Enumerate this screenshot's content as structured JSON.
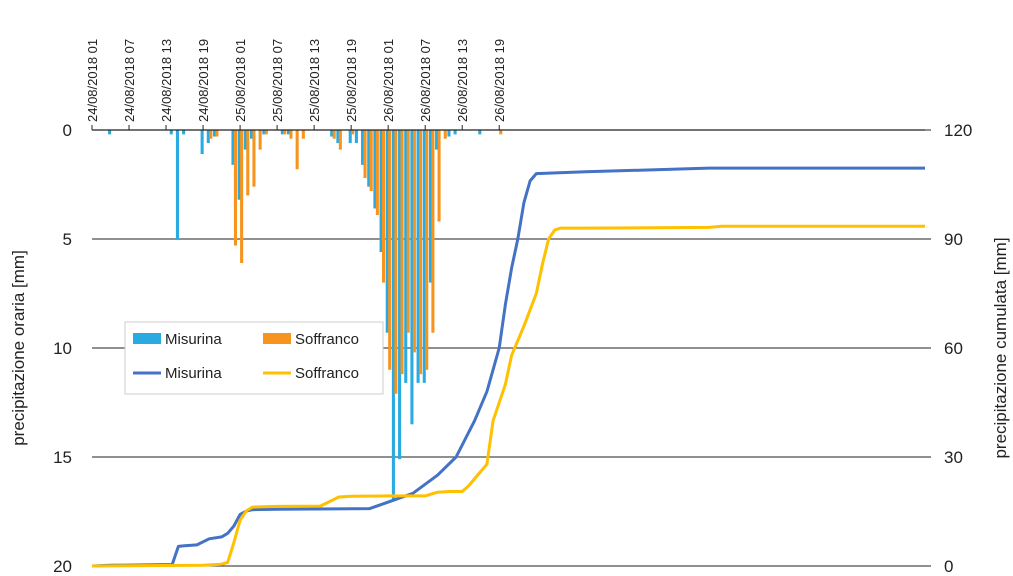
{
  "chart_data": {
    "type": "bar+line",
    "title": "",
    "x_ticks": [
      "24/08/2018 01",
      "24/08/2018 07",
      "24/08/2018 13",
      "24/08/2018 19",
      "25/08/2018 01",
      "25/08/2018 07",
      "25/08/2018 13",
      "25/08/2018 19",
      "26/08/2018 01",
      "26/08/2018 07",
      "26/08/2018 13",
      "26/08/2018 19"
    ],
    "x_range": [
      "24/08/2018 01",
      "26/08/2018 23"
    ],
    "y_left": {
      "label": "precipitazione oraria [mm]",
      "range": [
        0,
        20
      ],
      "inverted": true,
      "ticks": [
        "0",
        "5",
        "10",
        "15",
        "20"
      ]
    },
    "y_right": {
      "label": "precipitazione cumulata [mm]",
      "range": [
        0,
        120
      ],
      "ticks": [
        "0",
        "30",
        "60",
        "90",
        "120"
      ]
    },
    "grid": "horizontal",
    "legend": {
      "placement": "left-middle",
      "entries": [
        {
          "label": "Misurina",
          "kind": "bar",
          "color": "#29ABE2"
        },
        {
          "label": "Soffranco",
          "kind": "bar",
          "color": "#F7941D"
        },
        {
          "label": "Misurina",
          "kind": "line",
          "color": "#4472C4"
        },
        {
          "label": "Soffranco",
          "kind": "line",
          "color": "#FFC000"
        }
      ]
    },
    "bars": {
      "Misurina": [
        [
          3,
          0.2
        ],
        [
          13,
          0.2
        ],
        [
          14,
          5.0
        ],
        [
          15,
          0.2
        ],
        [
          18,
          1.1
        ],
        [
          19,
          0.6
        ],
        [
          20,
          0.3
        ],
        [
          23,
          1.6
        ],
        [
          24,
          3.2
        ],
        [
          25,
          0.9
        ],
        [
          26,
          0.4
        ],
        [
          28,
          0.2
        ],
        [
          31,
          0.2
        ],
        [
          32,
          0.2
        ],
        [
          39,
          0.3
        ],
        [
          40,
          0.6
        ],
        [
          42,
          0.6
        ],
        [
          43,
          0.6
        ],
        [
          44,
          1.6
        ],
        [
          45,
          2.6
        ],
        [
          46,
          3.6
        ],
        [
          47,
          5.6
        ],
        [
          48,
          9.3
        ],
        [
          49,
          17.0
        ],
        [
          50,
          15.1
        ],
        [
          51,
          11.6
        ],
        [
          52,
          13.5
        ],
        [
          53,
          11.6
        ],
        [
          54,
          11.6
        ],
        [
          55,
          7.0
        ],
        [
          56,
          0.9
        ],
        [
          58,
          0.3
        ],
        [
          59,
          0.2
        ],
        [
          63,
          0.2
        ]
      ],
      "Soffranco": [
        [
          19,
          0.4
        ],
        [
          20,
          0.3
        ],
        [
          23,
          5.3
        ],
        [
          24,
          6.1
        ],
        [
          25,
          3.0
        ],
        [
          26,
          2.6
        ],
        [
          27,
          0.9
        ],
        [
          28,
          0.2
        ],
        [
          31,
          0.2
        ],
        [
          32,
          0.4
        ],
        [
          33,
          1.8
        ],
        [
          34,
          0.4
        ],
        [
          39,
          0.4
        ],
        [
          40,
          0.9
        ],
        [
          42,
          0.2
        ],
        [
          44,
          2.2
        ],
        [
          45,
          2.8
        ],
        [
          46,
          3.9
        ],
        [
          47,
          7.0
        ],
        [
          48,
          11.0
        ],
        [
          49,
          12.1
        ],
        [
          50,
          11.2
        ],
        [
          51,
          9.3
        ],
        [
          52,
          10.2
        ],
        [
          53,
          11.2
        ],
        [
          54,
          11.0
        ],
        [
          55,
          9.3
        ],
        [
          56,
          4.2
        ],
        [
          57,
          0.4
        ],
        [
          66,
          0.2
        ]
      ]
    },
    "lines": {
      "Misurina": [
        [
          0,
          0
        ],
        [
          3,
          0.2
        ],
        [
          13,
          0.4
        ],
        [
          14,
          5.4
        ],
        [
          15,
          5.6
        ],
        [
          17,
          5.8
        ],
        [
          19,
          7.5
        ],
        [
          21,
          8.0
        ],
        [
          22,
          9.0
        ],
        [
          23,
          11.0
        ],
        [
          24,
          14.2
        ],
        [
          25,
          15.1
        ],
        [
          26,
          15.5
        ],
        [
          30,
          15.6
        ],
        [
          45,
          15.8
        ],
        [
          52,
          20.0
        ],
        [
          56,
          25.0
        ],
        [
          59,
          30.0
        ],
        [
          62,
          40.0
        ],
        [
          64,
          48.0
        ],
        [
          66,
          60.0
        ],
        [
          67,
          72.0
        ],
        [
          68,
          82.0
        ],
        [
          69,
          90.0
        ],
        [
          70,
          100.0
        ],
        [
          71,
          106.0
        ],
        [
          72,
          108.0
        ],
        [
          80,
          108.5
        ],
        [
          100,
          109.5
        ],
        [
          135,
          109.5
        ]
      ],
      "Soffranco": [
        [
          0,
          0
        ],
        [
          18,
          0.2
        ],
        [
          21,
          0.5
        ],
        [
          22,
          1.0
        ],
        [
          23,
          6.5
        ],
        [
          24,
          12.6
        ],
        [
          25,
          15.2
        ],
        [
          26,
          16.2
        ],
        [
          30,
          16.4
        ],
        [
          37,
          16.5
        ],
        [
          38,
          17.3
        ],
        [
          40,
          19.0
        ],
        [
          42,
          19.2
        ],
        [
          48,
          19.3
        ],
        [
          54,
          19.3
        ],
        [
          56,
          20.3
        ],
        [
          58,
          20.5
        ],
        [
          60,
          20.5
        ],
        [
          61,
          22.0
        ],
        [
          63,
          26.0
        ],
        [
          64,
          28.0
        ],
        [
          65,
          40.0
        ],
        [
          67,
          50.0
        ],
        [
          68,
          58.0
        ],
        [
          70,
          66.0
        ],
        [
          72,
          75.0
        ],
        [
          73,
          83.0
        ],
        [
          74,
          90.0
        ],
        [
          75,
          92.5
        ],
        [
          76,
          93.0
        ],
        [
          80,
          93.0
        ],
        [
          100,
          93.2
        ],
        [
          102,
          93.5
        ],
        [
          135,
          93.5
        ]
      ]
    }
  }
}
